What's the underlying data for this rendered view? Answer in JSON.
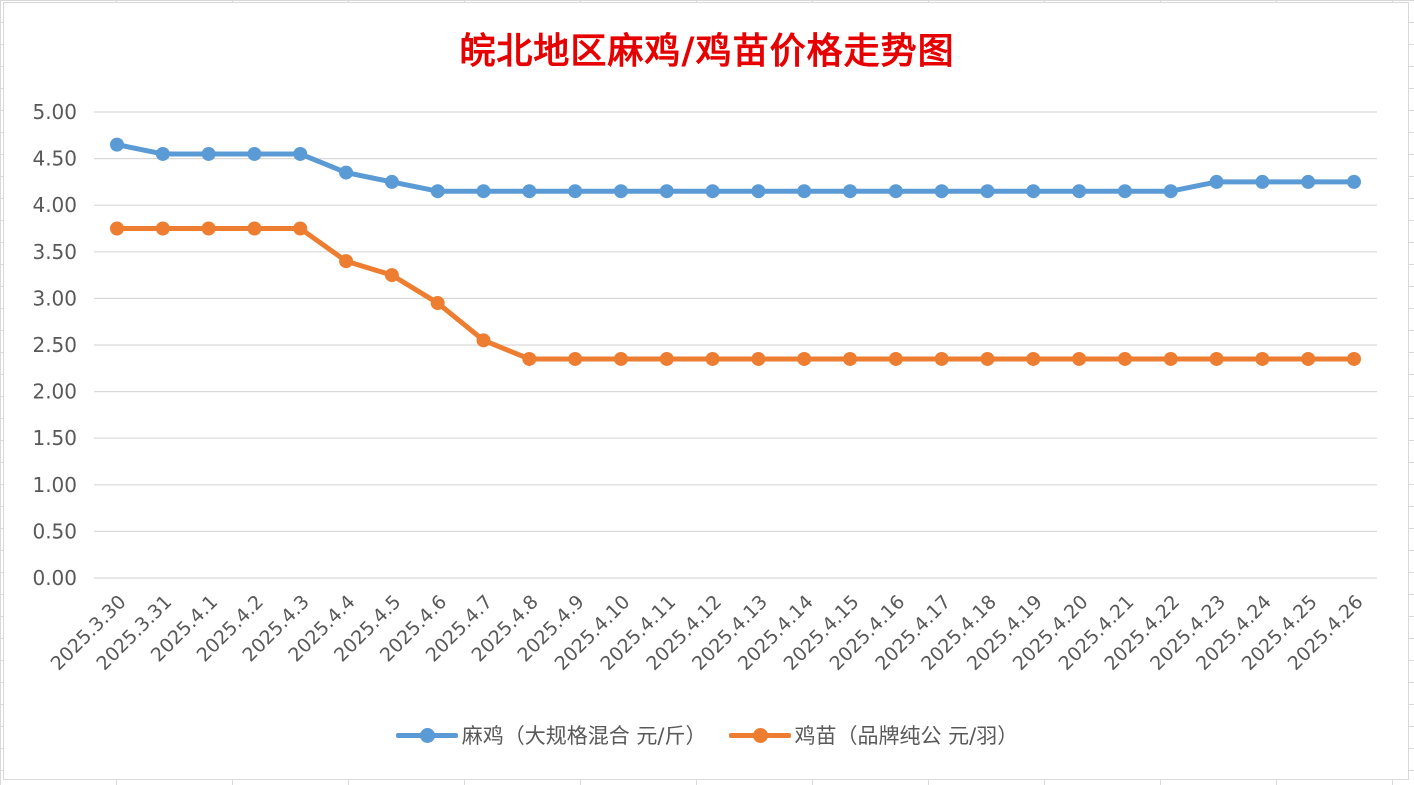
{
  "chart_data": {
    "type": "line",
    "title": "皖北地区麻鸡/鸡苗价格走势图",
    "categories": [
      "2025.3.30",
      "2025.3.31",
      "2025.4.1",
      "2025.4.2",
      "2025.4.3",
      "2025.4.4",
      "2025.4.5",
      "2025.4.6",
      "2025.4.7",
      "2025.4.8",
      "2025.4.9",
      "2025.4.10",
      "2025.4.11",
      "2025.4.12",
      "2025.4.13",
      "2025.4.14",
      "2025.4.15",
      "2025.4.16",
      "2025.4.17",
      "2025.4.18",
      "2025.4.19",
      "2025.4.20",
      "2025.4.21",
      "2025.4.22",
      "2025.4.23",
      "2025.4.24",
      "2025.4.25",
      "2025.4.26"
    ],
    "series": [
      {
        "name": "麻鸡（大规格混合 元/斤）",
        "color": "#5b9bd5",
        "values": [
          4.65,
          4.55,
          4.55,
          4.55,
          4.55,
          4.35,
          4.25,
          4.15,
          4.15,
          4.15,
          4.15,
          4.15,
          4.15,
          4.15,
          4.15,
          4.15,
          4.15,
          4.15,
          4.15,
          4.15,
          4.15,
          4.15,
          4.15,
          4.15,
          4.25,
          4.25,
          4.25,
          4.25
        ]
      },
      {
        "name": "鸡苗（品牌纯公 元/羽）",
        "color": "#ed7d31",
        "values": [
          3.75,
          3.75,
          3.75,
          3.75,
          3.75,
          3.4,
          3.25,
          2.95,
          2.55,
          2.35,
          2.35,
          2.35,
          2.35,
          2.35,
          2.35,
          2.35,
          2.35,
          2.35,
          2.35,
          2.35,
          2.35,
          2.35,
          2.35,
          2.35,
          2.35,
          2.35,
          2.35,
          2.35
        ]
      }
    ],
    "ylim": [
      0,
      5
    ],
    "yticks": [
      "0.00",
      "0.50",
      "1.00",
      "1.50",
      "2.00",
      "2.50",
      "3.00",
      "3.50",
      "4.00",
      "4.50",
      "5.00"
    ],
    "xlabel": "",
    "ylabel": "",
    "grid": true,
    "legend": "bottom"
  }
}
